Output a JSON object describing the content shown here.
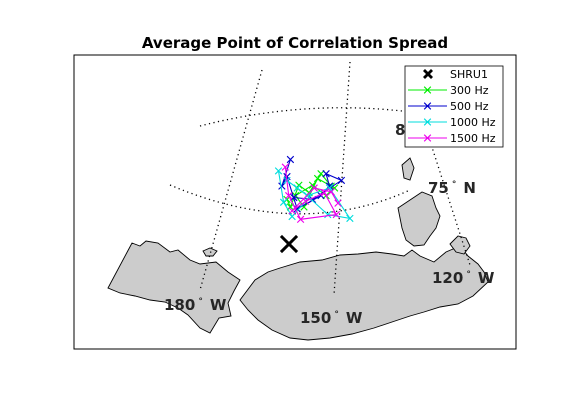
{
  "chart_data": {
    "type": "line",
    "title": "Average Point of Correlation Spread",
    "map": {
      "projection": "polar (Arctic)",
      "graticule_labels": [
        {
          "text": "75",
          "unit": "°",
          "hem": "N"
        },
        {
          "text": "8",
          "unit": "",
          "hem": ""
        },
        {
          "text": "180",
          "unit": "°",
          "hem": "W"
        },
        {
          "text": "150",
          "unit": "°",
          "hem": "W"
        },
        {
          "text": "120",
          "unit": "°",
          "hem": "W"
        }
      ]
    },
    "legend_placement": "top-right",
    "markers": [
      {
        "name": "SHRU1",
        "color": "#000000",
        "marker": "x-bold"
      }
    ],
    "series": [
      {
        "name": "300 Hz",
        "color": "#00ee00",
        "points": [
          [
            0.6,
            0.48
          ],
          [
            0.62,
            0.4
          ],
          [
            0.67,
            0.63
          ],
          [
            0.73,
            0.55
          ],
          [
            0.8,
            0.75
          ],
          [
            0.86,
            0.62
          ],
          [
            0.78,
            0.7
          ],
          [
            0.7,
            0.4
          ],
          [
            0.65,
            0.52
          ],
          [
            0.75,
            0.63
          ],
          [
            0.83,
            0.52
          ],
          [
            0.88,
            0.6
          ]
        ]
      },
      {
        "name": "500 Hz",
        "color": "#0000cc",
        "points": [
          [
            0.62,
            0.9
          ],
          [
            0.57,
            0.62
          ],
          [
            0.6,
            0.72
          ],
          [
            0.66,
            0.38
          ],
          [
            0.8,
            0.52
          ],
          [
            0.85,
            0.62
          ],
          [
            0.83,
            0.75
          ],
          [
            0.92,
            0.68
          ],
          [
            0.75,
            0.48
          ],
          [
            0.64,
            0.5
          ]
        ]
      },
      {
        "name": "1000 Hz",
        "color": "#00dddd",
        "points": [
          [
            0.55,
            0.78
          ],
          [
            0.58,
            0.45
          ],
          [
            0.63,
            0.3
          ],
          [
            0.73,
            0.5
          ],
          [
            0.84,
            0.32
          ],
          [
            0.97,
            0.28
          ],
          [
            0.85,
            0.6
          ],
          [
            0.72,
            0.52
          ],
          [
            0.66,
            0.6
          ],
          [
            0.6,
            0.68
          ]
        ]
      },
      {
        "name": "1500 Hz",
        "color": "#ee00ee",
        "points": [
          [
            0.59,
            0.82
          ],
          [
            0.61,
            0.52
          ],
          [
            0.68,
            0.27
          ],
          [
            0.89,
            0.32
          ],
          [
            0.82,
            0.55
          ],
          [
            0.71,
            0.46
          ],
          [
            0.63,
            0.36
          ],
          [
            0.76,
            0.6
          ],
          [
            0.86,
            0.56
          ],
          [
            0.9,
            0.44
          ]
        ]
      }
    ]
  }
}
